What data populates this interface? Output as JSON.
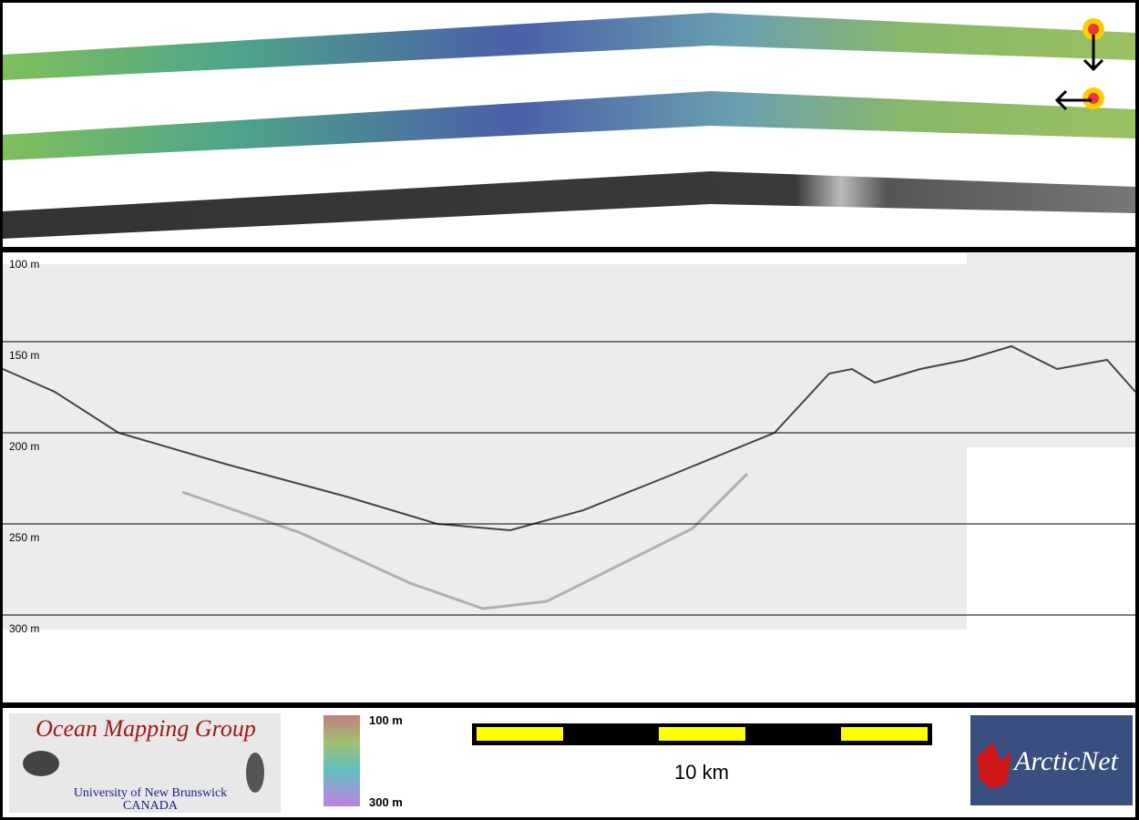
{
  "profile": {
    "depth_labels": [
      "100 m",
      "150 m",
      "200 m",
      "250 m",
      "300 m"
    ]
  },
  "footer": {
    "logo_title": "Ocean Mapping Group",
    "logo_university": "University of New Brunswick",
    "logo_country": "CANADA",
    "colorbar_top": "100 m",
    "colorbar_bottom": "300 m",
    "scale_label": "10 km",
    "partner": "ArcticNet"
  }
}
